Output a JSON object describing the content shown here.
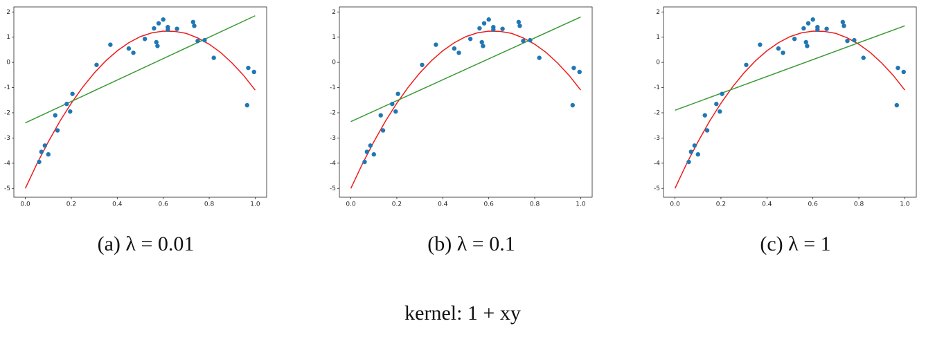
{
  "chart_data": [
    {
      "type": "scatter",
      "caption": "(a) λ = 0.01",
      "xlim": [
        -0.05,
        1.05
      ],
      "ylim": [
        -5.35,
        2.2
      ],
      "xticks": [
        {
          "value": 0,
          "label": "0.0"
        },
        {
          "value": 0.2,
          "label": "0.2"
        },
        {
          "value": 0.4,
          "label": "0.4"
        },
        {
          "value": 0.6,
          "label": "0.6"
        },
        {
          "value": 0.8,
          "label": "0.8"
        },
        {
          "value": 1,
          "label": "1.0"
        }
      ],
      "yticks": [
        -5,
        -4,
        -3,
        -2,
        -1,
        0,
        1,
        2
      ],
      "series": [
        {
          "type": "scatter",
          "color": "#1f77b4",
          "x": [
            0.06,
            0.07,
            0.085,
            0.1,
            0.13,
            0.14,
            0.18,
            0.195,
            0.205,
            0.31,
            0.37,
            0.45,
            0.47,
            0.52,
            0.56,
            0.57,
            0.575,
            0.58,
            0.6,
            0.62,
            0.62,
            0.66,
            0.73,
            0.735,
            0.75,
            0.78,
            0.82,
            0.965,
            0.97,
            0.995
          ],
          "values": [
            -3.95,
            -3.55,
            -3.3,
            -3.65,
            -2.1,
            -2.7,
            -1.65,
            -1.95,
            -1.25,
            -0.1,
            0.7,
            0.55,
            0.38,
            0.93,
            1.35,
            0.8,
            0.65,
            1.55,
            1.7,
            1.4,
            1.3,
            1.33,
            1.6,
            1.45,
            0.85,
            0.88,
            0.18,
            -1.7,
            -0.22,
            -0.38
          ]
        },
        {
          "type": "line",
          "color": "#ee1c1c",
          "x": [
            0,
            0.05,
            0.1,
            0.15,
            0.2,
            0.25,
            0.3,
            0.35,
            0.4,
            0.45,
            0.5,
            0.55,
            0.6,
            0.65,
            0.7,
            0.75,
            0.8,
            0.85,
            0.9,
            0.95,
            1
          ],
          "values": [
            -5,
            -4.03,
            -3.15,
            -2.34,
            -1.62,
            -0.98,
            -0.42,
            0.06,
            0.46,
            0.78,
            1.02,
            1.17,
            1.24,
            1.23,
            1.15,
            0.97,
            0.72,
            0.39,
            -0.03,
            -0.52,
            -1.1
          ]
        },
        {
          "type": "line",
          "color": "#3a9a35",
          "x": [
            0,
            1
          ],
          "values": [
            -2.4,
            1.85
          ]
        }
      ]
    },
    {
      "type": "scatter",
      "caption": "(b) λ = 0.1",
      "xlim": [
        -0.05,
        1.05
      ],
      "ylim": [
        -5.35,
        2.2
      ],
      "xticks": [
        {
          "value": 0,
          "label": "0.0"
        },
        {
          "value": 0.2,
          "label": "0.2"
        },
        {
          "value": 0.4,
          "label": "0.4"
        },
        {
          "value": 0.6,
          "label": "0.6"
        },
        {
          "value": 0.8,
          "label": "0.8"
        },
        {
          "value": 1,
          "label": "1.0"
        }
      ],
      "yticks": [
        -5,
        -4,
        -3,
        -2,
        -1,
        0,
        1,
        2
      ],
      "series": [
        {
          "type": "scatter",
          "color": "#1f77b4",
          "x": [
            0.06,
            0.07,
            0.085,
            0.1,
            0.13,
            0.14,
            0.18,
            0.195,
            0.205,
            0.31,
            0.37,
            0.45,
            0.47,
            0.52,
            0.56,
            0.57,
            0.575,
            0.58,
            0.6,
            0.62,
            0.62,
            0.66,
            0.73,
            0.735,
            0.75,
            0.78,
            0.82,
            0.965,
            0.97,
            0.995
          ],
          "values": [
            -3.95,
            -3.55,
            -3.3,
            -3.65,
            -2.1,
            -2.7,
            -1.65,
            -1.95,
            -1.25,
            -0.1,
            0.7,
            0.55,
            0.38,
            0.93,
            1.35,
            0.8,
            0.65,
            1.55,
            1.7,
            1.4,
            1.3,
            1.33,
            1.6,
            1.45,
            0.85,
            0.88,
            0.18,
            -1.7,
            -0.22,
            -0.38
          ]
        },
        {
          "type": "line",
          "color": "#ee1c1c",
          "x": [
            0,
            0.05,
            0.1,
            0.15,
            0.2,
            0.25,
            0.3,
            0.35,
            0.4,
            0.45,
            0.5,
            0.55,
            0.6,
            0.65,
            0.7,
            0.75,
            0.8,
            0.85,
            0.9,
            0.95,
            1
          ],
          "values": [
            -5,
            -4.03,
            -3.15,
            -2.34,
            -1.62,
            -0.98,
            -0.42,
            0.06,
            0.46,
            0.78,
            1.02,
            1.17,
            1.24,
            1.23,
            1.15,
            0.97,
            0.72,
            0.39,
            -0.03,
            -0.52,
            -1.1
          ]
        },
        {
          "type": "line",
          "color": "#3a9a35",
          "x": [
            0,
            1
          ],
          "values": [
            -2.35,
            1.8
          ]
        }
      ]
    },
    {
      "type": "scatter",
      "caption": "(c) λ = 1",
      "xlim": [
        -0.05,
        1.05
      ],
      "ylim": [
        -5.35,
        2.2
      ],
      "xticks": [
        {
          "value": 0,
          "label": "0.0"
        },
        {
          "value": 0.2,
          "label": "0.2"
        },
        {
          "value": 0.4,
          "label": "0.4"
        },
        {
          "value": 0.6,
          "label": "0.6"
        },
        {
          "value": 0.8,
          "label": "0.8"
        },
        {
          "value": 1,
          "label": "1.0"
        }
      ],
      "yticks": [
        -5,
        -4,
        -3,
        -2,
        -1,
        0,
        1,
        2
      ],
      "series": [
        {
          "type": "scatter",
          "color": "#1f77b4",
          "x": [
            0.06,
            0.07,
            0.085,
            0.1,
            0.13,
            0.14,
            0.18,
            0.195,
            0.205,
            0.31,
            0.37,
            0.45,
            0.47,
            0.52,
            0.56,
            0.57,
            0.575,
            0.58,
            0.6,
            0.62,
            0.62,
            0.66,
            0.73,
            0.735,
            0.75,
            0.78,
            0.82,
            0.965,
            0.97,
            0.995
          ],
          "values": [
            -3.95,
            -3.55,
            -3.3,
            -3.65,
            -2.1,
            -2.7,
            -1.65,
            -1.95,
            -1.25,
            -0.1,
            0.7,
            0.55,
            0.38,
            0.93,
            1.35,
            0.8,
            0.65,
            1.55,
            1.7,
            1.4,
            1.3,
            1.33,
            1.6,
            1.45,
            0.85,
            0.88,
            0.18,
            -1.7,
            -0.22,
            -0.38
          ]
        },
        {
          "type": "line",
          "color": "#ee1c1c",
          "x": [
            0,
            0.05,
            0.1,
            0.15,
            0.2,
            0.25,
            0.3,
            0.35,
            0.4,
            0.45,
            0.5,
            0.55,
            0.6,
            0.65,
            0.7,
            0.75,
            0.8,
            0.85,
            0.9,
            0.95,
            1
          ],
          "values": [
            -5,
            -4.03,
            -3.15,
            -2.34,
            -1.62,
            -0.98,
            -0.42,
            0.06,
            0.46,
            0.78,
            1.02,
            1.17,
            1.24,
            1.23,
            1.15,
            0.97,
            0.72,
            0.39,
            -0.03,
            -0.52,
            -1.1
          ]
        },
        {
          "type": "line",
          "color": "#3a9a35",
          "x": [
            0,
            1
          ],
          "values": [
            -1.9,
            1.45
          ]
        }
      ]
    }
  ],
  "figure_caption": "kernel: 1 + xy"
}
